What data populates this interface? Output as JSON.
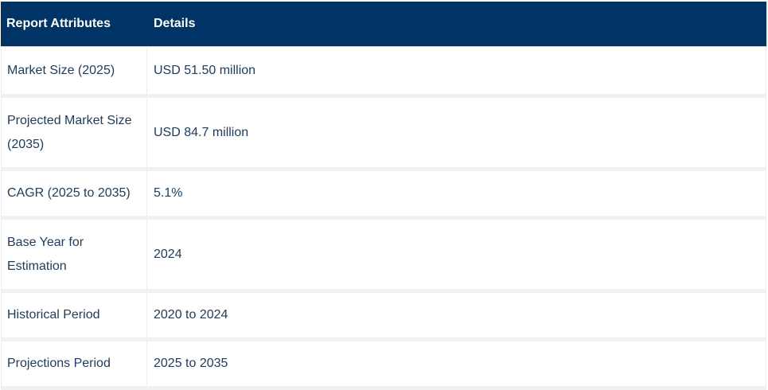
{
  "table": {
    "headers": [
      "Report Attributes",
      "Details"
    ],
    "rows": [
      {
        "attribute": "Market Size (2025)",
        "detail": "USD 51.50 million"
      },
      {
        "attribute": "Projected Market Size (2035)",
        "detail": "USD 84.7 million"
      },
      {
        "attribute": "CAGR (2025 to 2035)",
        "detail": "5.1%"
      },
      {
        "attribute": "Base Year for Estimation",
        "detail": "2024"
      },
      {
        "attribute": "Historical Period",
        "detail": "2020 to 2024"
      },
      {
        "attribute": "Projections Period",
        "detail": "2025 to 2035"
      }
    ]
  }
}
